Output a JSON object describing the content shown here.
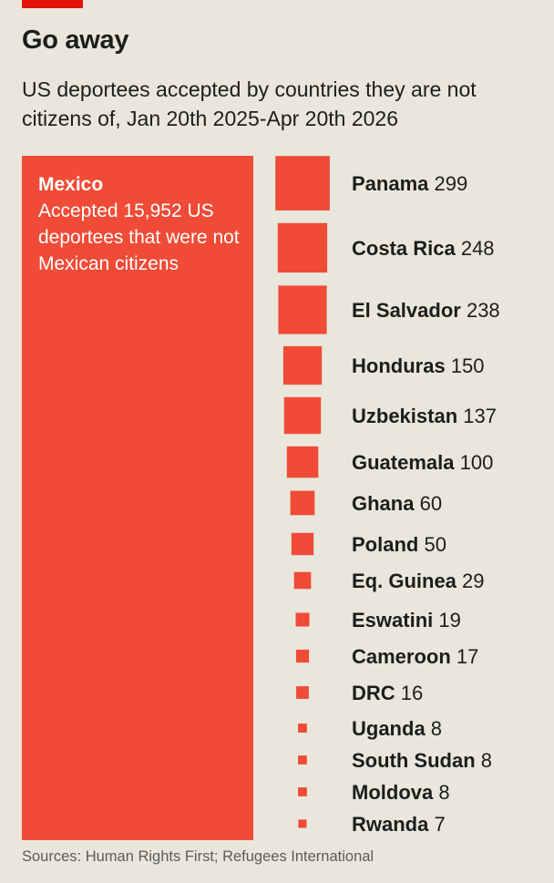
{
  "title": "Go away",
  "subtitle": "US deportees accepted by countries they are not citizens of, Jan 20th 2025-Apr 20th 2026",
  "source": "Sources: Human Rights First; Refugees International",
  "colors": {
    "accent": "#e3120b",
    "square": "#ef4b37",
    "background": "#e9e7dc",
    "text": "#1d1d1b"
  },
  "chart_data": {
    "type": "proportional-squares",
    "featured": {
      "country": "Mexico",
      "value": 15952,
      "annotation": "Accepted 15,952 US deportees that were not Mexican citizens"
    },
    "categories": [
      "Panama",
      "Costa Rica",
      "El Salvador",
      "Honduras",
      "Uzbekistan",
      "Guatemala",
      "Ghana",
      "Poland",
      "Eq. Guinea",
      "Eswatini",
      "Cameroon",
      "DRC",
      "Uganda",
      "South Sudan",
      "Moldova",
      "Rwanda"
    ],
    "values": [
      299,
      248,
      238,
      150,
      137,
      100,
      60,
      50,
      29,
      19,
      17,
      16,
      8,
      8,
      8,
      7
    ]
  }
}
